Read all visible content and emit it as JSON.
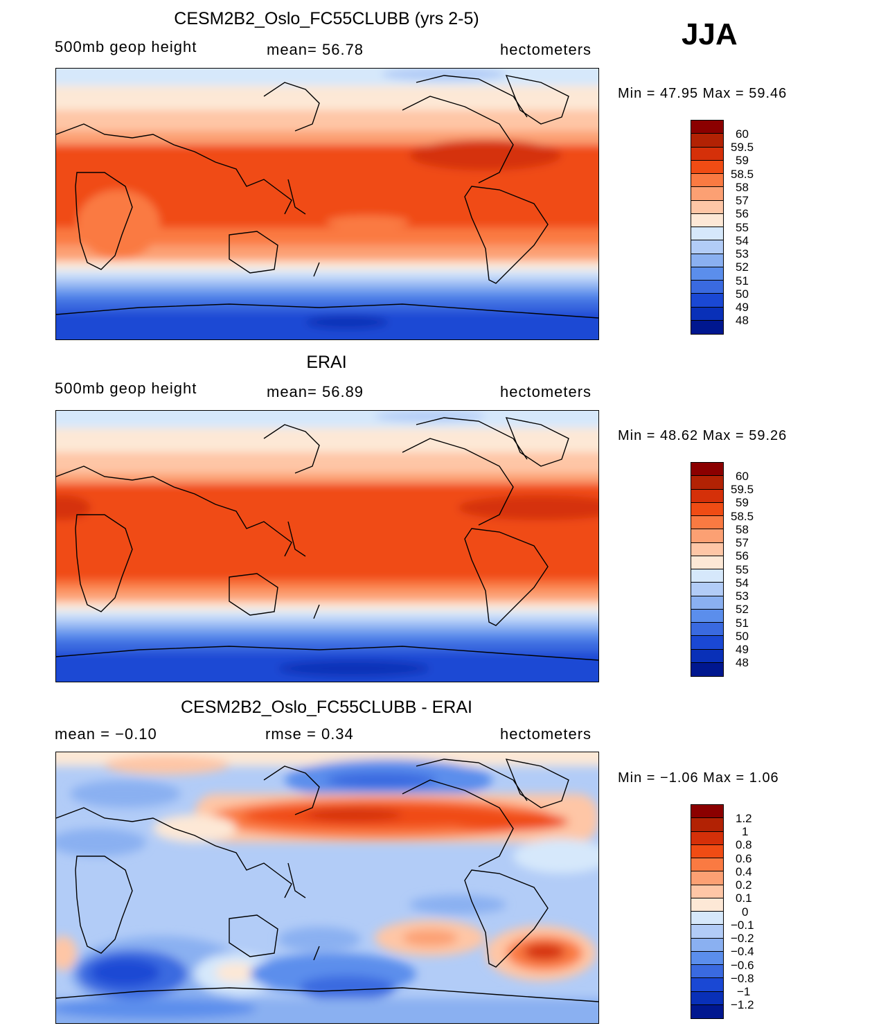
{
  "season": "JJA",
  "panels": [
    {
      "title": "CESM2B2_Oslo_FC55CLUBB (yrs 2-5)",
      "left_label": "500mb  geop  height",
      "center_label": "mean=   56.78",
      "units": "hectometers",
      "minmax": "Min =   47.95  Max =   59.46",
      "min_value": 47.95,
      "max_value": 59.46,
      "mean_value": 56.78,
      "map": "model-geopotential-height-map",
      "colorbar_labels": [
        "60",
        "59.5",
        "59",
        "58.5",
        "58",
        "57",
        "56",
        "55",
        "54",
        "53",
        "52",
        "51",
        "50",
        "49",
        "48"
      ],
      "colorbar_colors": [
        "#8b0000",
        "#b22204",
        "#d53009",
        "#f04c14",
        "#fa7a42",
        "#fca073",
        "#fec6a6",
        "#fde8d6",
        "#d6e8fb",
        "#b2ccf7",
        "#8ab0f1",
        "#5b8eec",
        "#3a6ae0",
        "#1a48d4",
        "#0930b8",
        "#00178f"
      ]
    },
    {
      "title": "ERAI",
      "left_label": "500mb  geop  height",
      "center_label": "mean=   56.89",
      "units": "hectometers",
      "minmax": "Min =   48.62  Max =   59.26",
      "min_value": 48.62,
      "max_value": 59.26,
      "mean_value": 56.89,
      "map": "observed-geopotential-height-map",
      "colorbar_labels": [
        "60",
        "59.5",
        "59",
        "58.5",
        "58",
        "57",
        "56",
        "55",
        "54",
        "53",
        "52",
        "51",
        "50",
        "49",
        "48"
      ],
      "colorbar_colors": [
        "#8b0000",
        "#b22204",
        "#d53009",
        "#f04c14",
        "#fa7a42",
        "#fca073",
        "#fec6a6",
        "#fde8d6",
        "#d6e8fb",
        "#b2ccf7",
        "#8ab0f1",
        "#5b8eec",
        "#3a6ae0",
        "#1a48d4",
        "#0930b8",
        "#00178f"
      ]
    },
    {
      "title": "CESM2B2_Oslo_FC55CLUBB - ERAI",
      "left_label": "mean =   −0.10",
      "center_label": "rmse =    0.34",
      "units": "hectometers",
      "minmax": "Min =   −1.06  Max =    1.06",
      "min_value": -1.06,
      "max_value": 1.06,
      "mean_value": -0.1,
      "rmse_value": 0.34,
      "map": "difference-map",
      "colorbar_labels": [
        "1.2",
        "1",
        "0.8",
        "0.6",
        "0.4",
        "0.2",
        "0.1",
        "0",
        "−0.1",
        "−0.2",
        "−0.4",
        "−0.6",
        "−0.8",
        "−1",
        "−1.2"
      ],
      "colorbar_colors": [
        "#8b0000",
        "#b22204",
        "#d53009",
        "#f04c14",
        "#fa7a42",
        "#fca073",
        "#fec6a6",
        "#fde8d6",
        "#d6e8fb",
        "#b2ccf7",
        "#8ab0f1",
        "#5b8eec",
        "#3a6ae0",
        "#1a48d4",
        "#0930b8",
        "#00178f"
      ]
    }
  ]
}
